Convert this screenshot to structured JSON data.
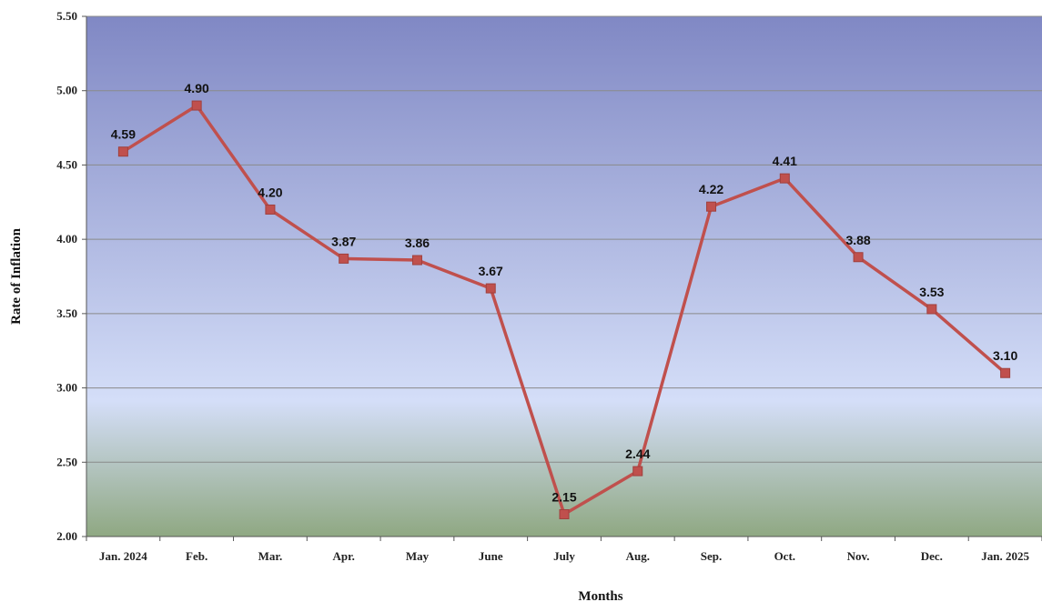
{
  "chart_data": {
    "type": "line",
    "title": "",
    "xlabel": "Months",
    "ylabel": "Rate of Inflation",
    "categories": [
      "Jan. 2024",
      "Feb.",
      "Mar.",
      "Apr.",
      "May",
      "June",
      "July",
      "Aug.",
      "Sep.",
      "Oct.",
      "Nov.",
      "Dec.",
      "Jan. 2025"
    ],
    "series": [
      {
        "values": [
          4.59,
          4.9,
          4.2,
          3.87,
          3.86,
          3.67,
          2.15,
          2.44,
          4.22,
          4.41,
          3.88,
          3.53,
          3.1
        ],
        "data_labels": [
          "4.59",
          "4.90",
          "4.20",
          "3.87",
          "3.86",
          "3.67",
          "2.15",
          "2.44",
          "4.22",
          "4.41",
          "3.88",
          "3.53",
          "3.10"
        ],
        "color": "#c0504d",
        "marker": "square"
      }
    ],
    "ylim": [
      2.0,
      5.5
    ],
    "yticks": [
      "2.00",
      "2.50",
      "3.00",
      "3.50",
      "4.00",
      "4.50",
      "5.00",
      "5.50"
    ],
    "grid": true,
    "colors": {
      "background_top": "#8088c4",
      "background_middle": "#d4def8",
      "background_bottom": "#8fa882",
      "gridline": "#8a8a8a",
      "line": "#c0504d"
    }
  }
}
